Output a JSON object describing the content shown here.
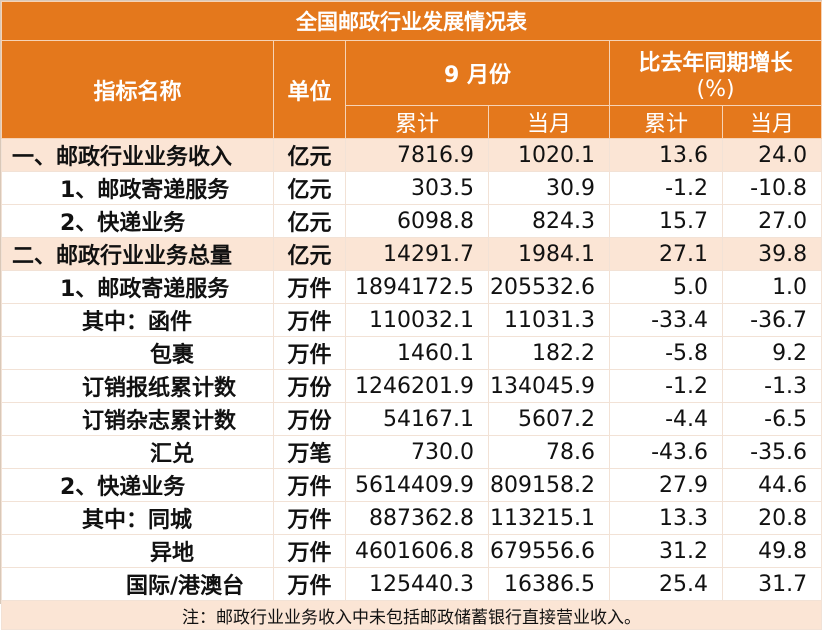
{
  "title": "全国邮政行业发展情况表",
  "headers": {
    "indicator": "指标名称",
    "unit": "单位",
    "month": "9 月份",
    "growth_line1": "比去年同期增长",
    "growth_line2": "(%)",
    "cumulative": "累计",
    "current_month": "当月"
  },
  "rows": [
    {
      "name": "一、邮政行业业务收入",
      "unit": "亿元",
      "cum": "7816.9",
      "cur": "1020.1",
      "gcum": "13.6",
      "gcur": "24.0"
    },
    {
      "name": "1、邮政寄递服务",
      "unit": "亿元",
      "cum": "303.5",
      "cur": "30.9",
      "gcum": "-1.2",
      "gcur": "-10.8"
    },
    {
      "name": "2、快递业务",
      "unit": "亿元",
      "cum": "6098.8",
      "cur": "824.3",
      "gcum": "15.7",
      "gcur": "27.0"
    },
    {
      "name": "二、邮政行业业务总量",
      "unit": "亿元",
      "cum": "14291.7",
      "cur": "1984.1",
      "gcum": "27.1",
      "gcur": "39.8"
    },
    {
      "name": "1、邮政寄递服务",
      "unit": "万件",
      "cum": "1894172.5",
      "cur": "205532.6",
      "gcum": "5.0",
      "gcur": "1.0"
    },
    {
      "name": "其中：函件",
      "unit": "万件",
      "cum": "110032.1",
      "cur": "11031.3",
      "gcum": "-33.4",
      "gcur": "-36.7"
    },
    {
      "name": "包裹",
      "unit": "万件",
      "cum": "1460.1",
      "cur": "182.2",
      "gcum": "-5.8",
      "gcur": "9.2"
    },
    {
      "name": "订销报纸累计数",
      "unit": "万份",
      "cum": "1246201.9",
      "cur": "134045.9",
      "gcum": "-1.2",
      "gcur": "-1.3"
    },
    {
      "name": "订销杂志累计数",
      "unit": "万份",
      "cum": "54167.1",
      "cur": "5607.2",
      "gcum": "-4.4",
      "gcur": "-6.5"
    },
    {
      "name": "汇兑",
      "unit": "万笔",
      "cum": "730.0",
      "cur": "78.6",
      "gcum": "-43.6",
      "gcur": "-35.6"
    },
    {
      "name": "2、快递业务",
      "unit": "万件",
      "cum": "5614409.9",
      "cur": "809158.2",
      "gcum": "27.9",
      "gcur": "44.6"
    },
    {
      "name": "其中：同城",
      "unit": "万件",
      "cum": "887362.8",
      "cur": "113215.1",
      "gcum": "13.3",
      "gcur": "20.8"
    },
    {
      "name": "异地",
      "unit": "万件",
      "cum": "4601606.8",
      "cur": "679556.6",
      "gcum": "31.2",
      "gcur": "49.8"
    },
    {
      "name": "国际/港澳台",
      "unit": "万件",
      "cum": "125440.3",
      "cur": "16386.5",
      "gcum": "25.4",
      "gcur": "31.7"
    }
  ],
  "note": "注：邮政行业业务收入中未包括邮政储蓄银行直接营业收入。",
  "colors": {
    "header_orange": "#e4781c",
    "highlight_peach": "#fbe5d5",
    "white": "#ffffff"
  }
}
